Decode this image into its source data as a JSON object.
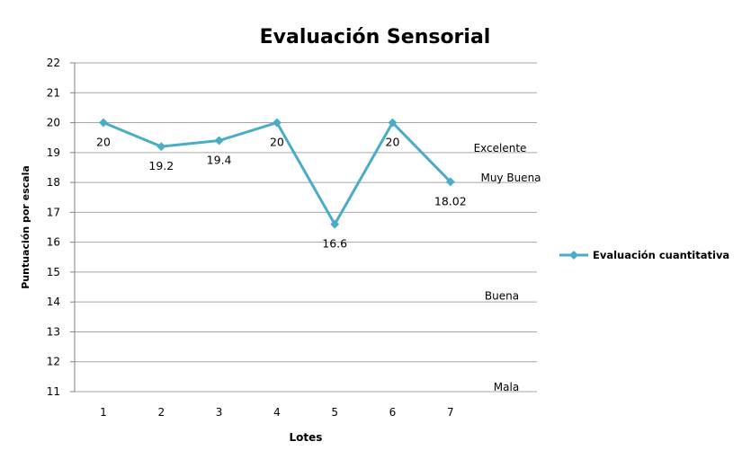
{
  "chart_data": {
    "type": "line",
    "title": "Evaluación Sensorial",
    "xlabel": "Lotes",
    "ylabel": "Puntuación por escala",
    "categories": [
      "1",
      "2",
      "3",
      "4",
      "5",
      "6",
      "7"
    ],
    "ylim": [
      11,
      22
    ],
    "yticks": [
      11,
      12,
      13,
      14,
      15,
      16,
      17,
      18,
      19,
      20,
      21,
      22
    ],
    "grid": true,
    "legend_position": "right",
    "series": [
      {
        "name": "Evaluación cuantitativa",
        "values": [
          20,
          19.2,
          19.4,
          20,
          16.6,
          20,
          18.02
        ],
        "labels": [
          "20",
          "19.2",
          "19.4",
          "20",
          "16.6",
          "20",
          "18.02"
        ],
        "color": "#4bacc6"
      }
    ],
    "annotations": [
      {
        "text": "Excelente",
        "y": 19.15
      },
      {
        "text": "Muy Buena",
        "y": 18.15
      },
      {
        "text": "Buena",
        "y": 14.2
      },
      {
        "text": "Mala",
        "y": 11.15
      }
    ]
  }
}
